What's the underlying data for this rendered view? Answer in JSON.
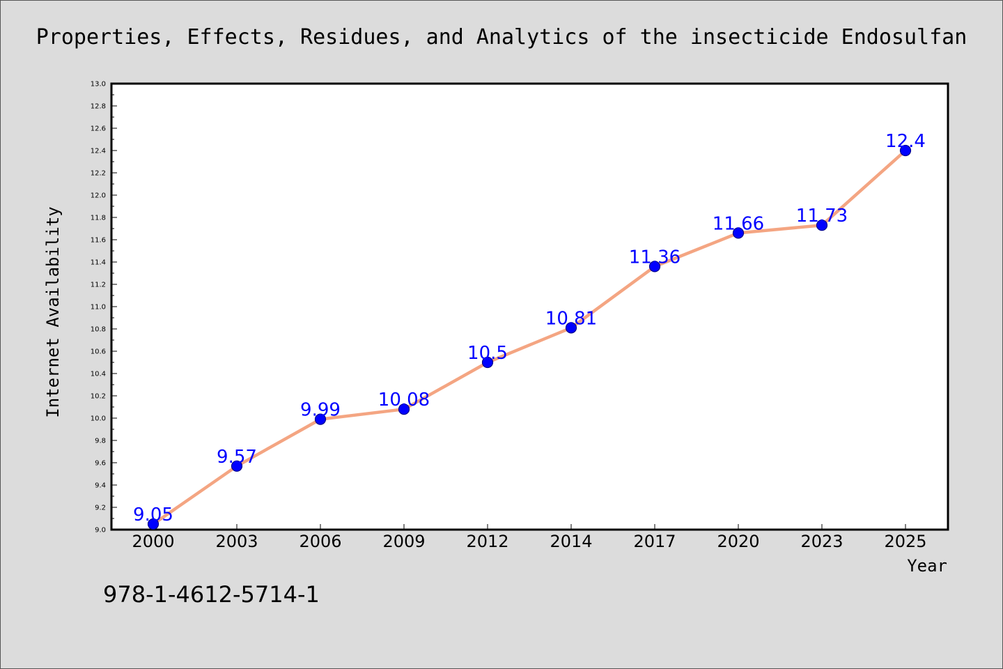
{
  "colors": {
    "line": "#f4a582",
    "marker": "#0000ff",
    "marker_edge": "#00008b",
    "label": "#0000ff",
    "background": "#dcdcdc",
    "plot_background": "#ffffff"
  },
  "footer": {
    "isbn": "978-1-4612-5714-1"
  },
  "chart_data": {
    "type": "line",
    "title": "Properties, Effects, Residues, and Analytics of the insecticide Endosulfan",
    "xlabel": "Year",
    "ylabel": "Internet Availability",
    "categories": [
      "2000",
      "2003",
      "2006",
      "2009",
      "2012",
      "2014",
      "2017",
      "2020",
      "2023",
      "2025"
    ],
    "series": [
      {
        "values": [
          9.05,
          9.57,
          9.99,
          10.08,
          10.5,
          10.81,
          11.36,
          11.66,
          11.73,
          12.4
        ],
        "labels": [
          "9.05",
          "9.57",
          "9.99",
          "10.08",
          "10.5",
          "10.81",
          "11.36",
          "11.66",
          "11.73",
          "12.4"
        ]
      }
    ],
    "ylim": [
      9.0,
      13.0
    ],
    "yticks": [
      "9.0",
      "9.2",
      "9.4",
      "9.6",
      "9.8",
      "10.0",
      "10.2",
      "10.4",
      "10.6",
      "10.8",
      "11.0",
      "11.2",
      "11.4",
      "11.6",
      "11.8",
      "12.0",
      "12.2",
      "12.4",
      "12.6",
      "12.8",
      "13.0"
    ],
    "grid": false,
    "legend": "none"
  }
}
